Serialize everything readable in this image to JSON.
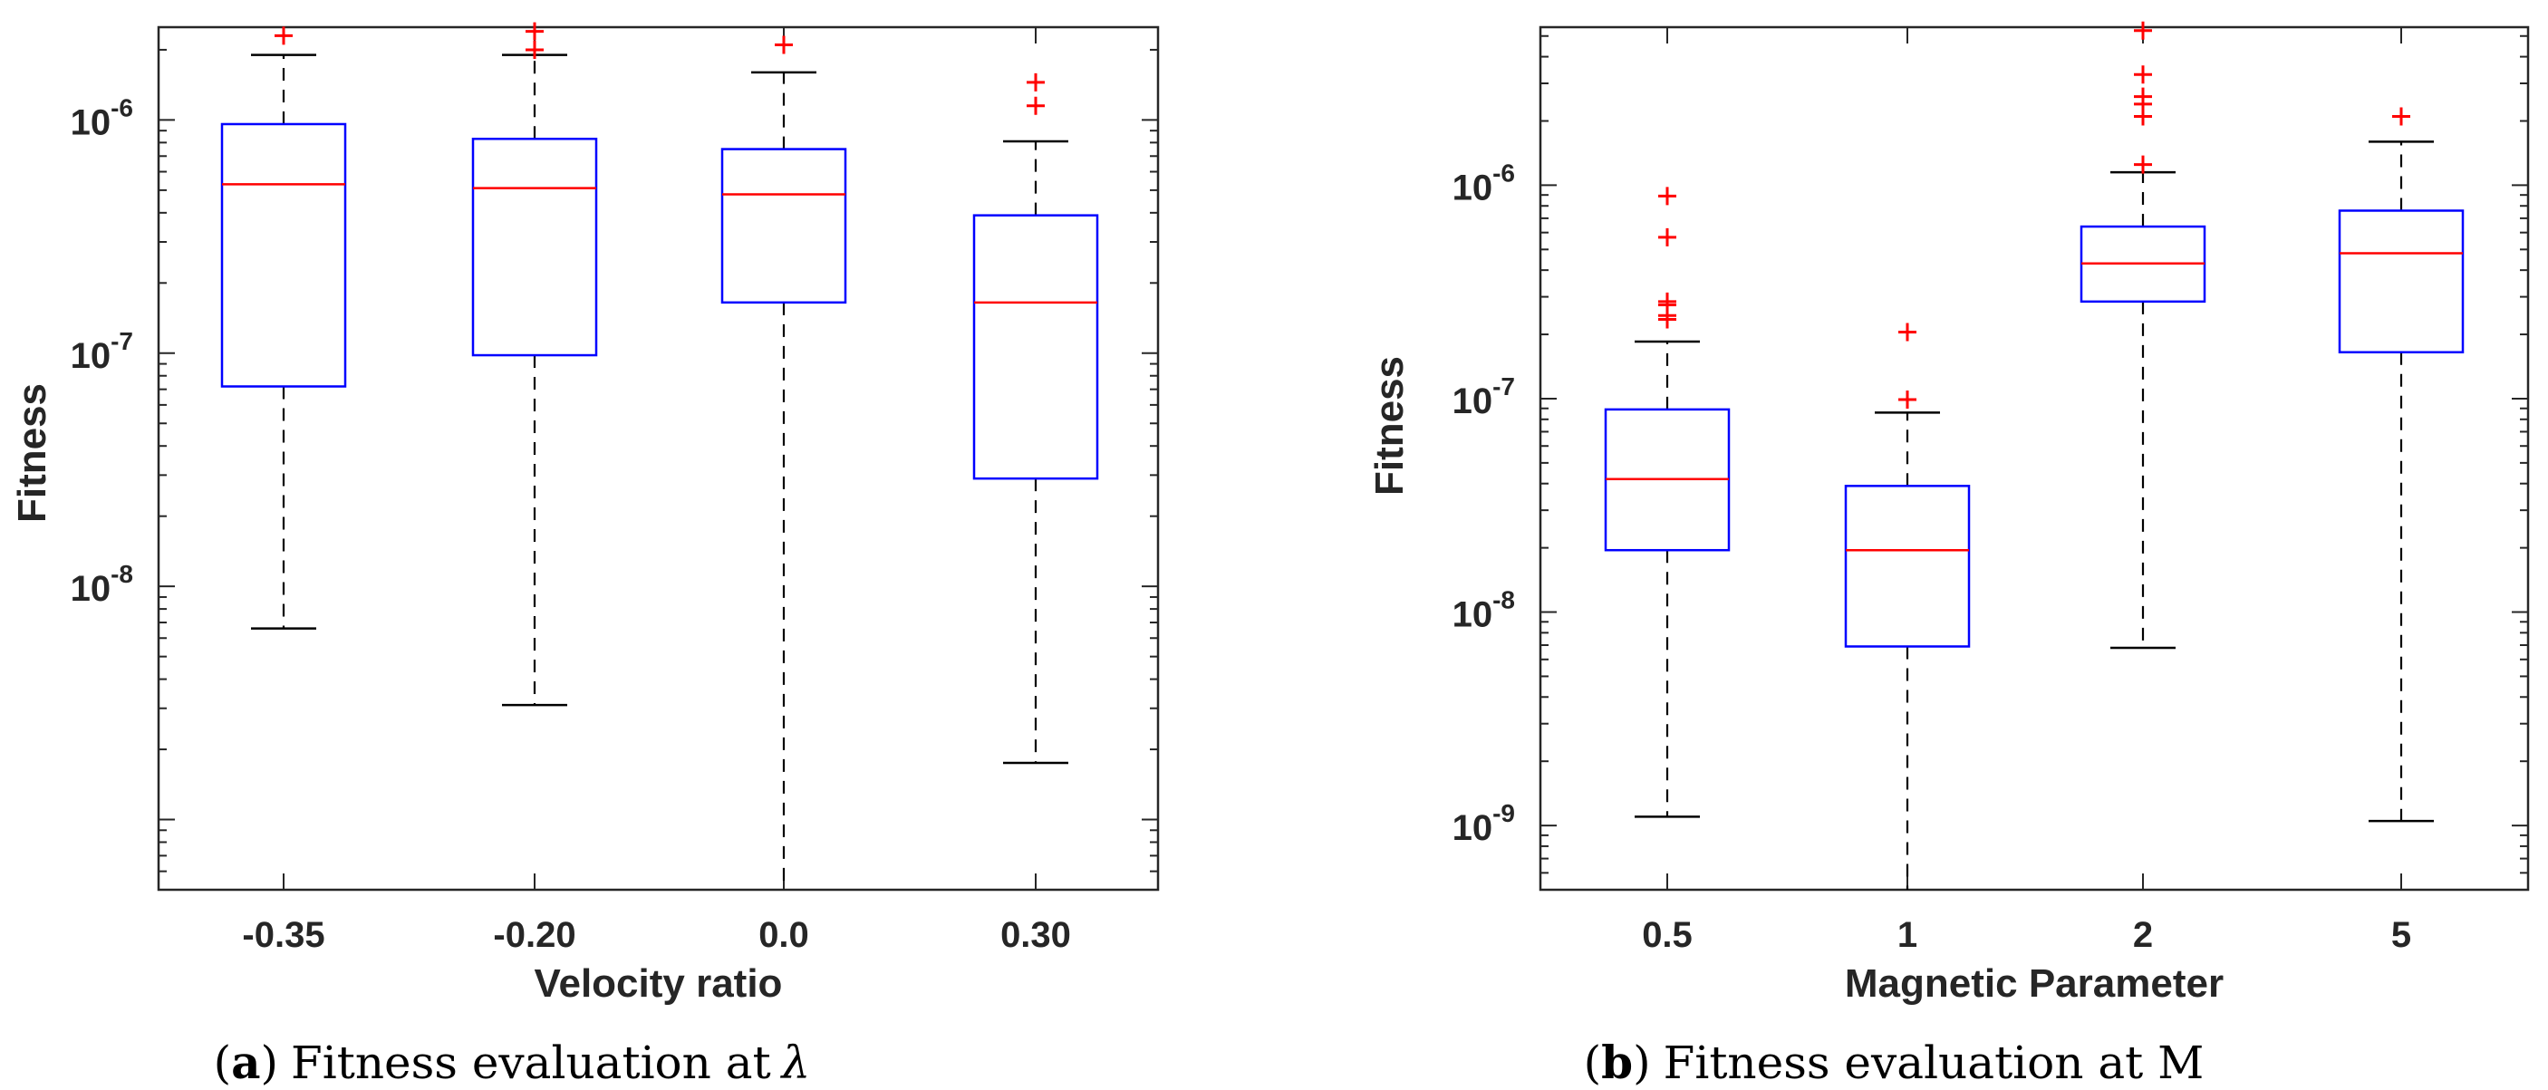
{
  "chart_data": [
    {
      "type": "box",
      "caption": {
        "letter": "a",
        "text": "Fitness evaluation at",
        "symbol": "λ"
      },
      "xlabel": "Velocity ratio",
      "ylabel": "Fitness",
      "yscale": "log",
      "ylim": [
        5e-10,
        2.5e-06
      ],
      "ytick_labels": [
        {
          "value": 1e-08,
          "base": "10",
          "exp": "-8"
        },
        {
          "value": 1e-07,
          "base": "10",
          "exp": "-7"
        },
        {
          "value": 1e-06,
          "base": "10",
          "exp": "-6"
        }
      ],
      "categories": [
        "-0.35",
        "-0.20",
        "0.0",
        "0.30"
      ],
      "boxes": [
        {
          "whisker_low": 6.6e-09,
          "q1": 7.2e-08,
          "median": 5.3e-07,
          "q3": 9.6e-07,
          "whisker_high": 1.9e-06,
          "outliers": [
            2.3e-06
          ]
        },
        {
          "whisker_low": 3.1e-09,
          "q1": 9.8e-08,
          "median": 5.1e-07,
          "q3": 8.3e-07,
          "whisker_high": 1.9e-06,
          "outliers": [
            2e-06,
            2.4e-06
          ]
        },
        {
          "whisker_low": 5e-10,
          "q1": 1.65e-07,
          "median": 4.8e-07,
          "q3": 7.5e-07,
          "whisker_high": 1.6e-06,
          "outliers": [
            2.1e-06
          ]
        },
        {
          "whisker_low": 1.75e-09,
          "q1": 2.9e-08,
          "median": 1.65e-07,
          "q3": 3.9e-07,
          "whisker_high": 8.1e-07,
          "outliers": [
            1.15e-06,
            1.45e-06
          ]
        }
      ]
    },
    {
      "type": "box",
      "caption": {
        "letter": "b",
        "text": "Fitness evaluation at M",
        "symbol": ""
      },
      "xlabel": "Magnetic Parameter",
      "ylabel": "Fitness",
      "yscale": "log",
      "ylim": [
        5e-10,
        5.5e-06
      ],
      "ytick_labels": [
        {
          "value": 1e-09,
          "base": "10",
          "exp": "-9"
        },
        {
          "value": 1e-08,
          "base": "10",
          "exp": "-8"
        },
        {
          "value": 1e-07,
          "base": "10",
          "exp": "-7"
        },
        {
          "value": 1e-06,
          "base": "10",
          "exp": "-6"
        }
      ],
      "categories": [
        "0.5",
        "1",
        "2",
        "5"
      ],
      "boxes": [
        {
          "whisker_low": 1.1e-09,
          "q1": 1.95e-08,
          "median": 4.2e-08,
          "q3": 8.9e-08,
          "whisker_high": 1.85e-07,
          "outliers": [
            2.35e-07,
            2.45e-07,
            2.75e-07,
            2.85e-07,
            5.7e-07,
            8.9e-07
          ]
        },
        {
          "whisker_low": 5e-10,
          "q1": 6.9e-09,
          "median": 1.95e-08,
          "q3": 3.9e-08,
          "whisker_high": 8.6e-08,
          "outliers": [
            9.9e-08,
            2.05e-07
          ]
        },
        {
          "whisker_low": 6.8e-09,
          "q1": 2.85e-07,
          "median": 4.3e-07,
          "q3": 6.4e-07,
          "whisker_high": 1.15e-06,
          "outliers": [
            1.25e-06,
            2.1e-06,
            2.4e-06,
            2.6e-06,
            3.3e-06,
            5.3e-06
          ]
        },
        {
          "whisker_low": 1.05e-09,
          "q1": 1.65e-07,
          "median": 4.8e-07,
          "q3": 7.6e-07,
          "whisker_high": 1.6e-06,
          "outliers": [
            2.1e-06
          ]
        }
      ]
    }
  ],
  "colors": {
    "box": "#0000ff",
    "median": "#ff0000",
    "outlier": "#ff0000",
    "whisker": "#000000",
    "axis": "#262626"
  }
}
